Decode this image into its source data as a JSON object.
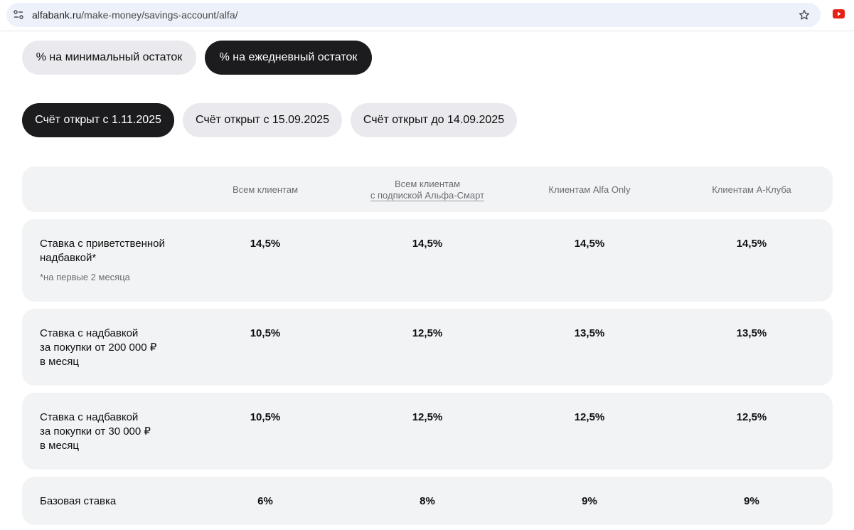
{
  "browser": {
    "url_host": "alfabank.ru",
    "url_path": "/make-money/savings-account/alfa/",
    "site_info_icon": "tune-icon",
    "bookmark_icon": "star-icon",
    "extension_icon": "youtube-icon"
  },
  "rate_type_tabs": [
    {
      "label": "% на минимальный остаток",
      "active": false
    },
    {
      "label": "% на ежедневный остаток",
      "active": true
    }
  ],
  "account_date_tabs": [
    {
      "label": "Счёт открыт с 1.11.2025",
      "active": true
    },
    {
      "label": "Счёт открыт с 15.09.2025",
      "active": false
    },
    {
      "label": "Счёт открыт до 14.09.2025",
      "active": false
    }
  ],
  "table": {
    "headers": [
      {
        "line1": "Всем клиентам",
        "line2": ""
      },
      {
        "line1": "Всем клиентам",
        "line2": "с подпиской Альфа-Смарт"
      },
      {
        "line1": "Клиентам Alfa Only",
        "line2": ""
      },
      {
        "line1": "Клиентам А-Клуба",
        "line2": ""
      }
    ],
    "rows": [
      {
        "label_lines": [
          "Ставка с приветственной",
          "надбавкой*"
        ],
        "note": "*на первые 2 месяца",
        "values": [
          "14,5%",
          "14,5%",
          "14,5%",
          "14,5%"
        ]
      },
      {
        "label_lines": [
          "Ставка с надбавкой",
          "за покупки от 200 000 ₽",
          "в месяц"
        ],
        "note": "",
        "values": [
          "10,5%",
          "12,5%",
          "13,5%",
          "13,5%"
        ]
      },
      {
        "label_lines": [
          "Ставка с надбавкой",
          "за покупки от 30 000 ₽",
          "в месяц"
        ],
        "note": "",
        "values": [
          "10,5%",
          "12,5%",
          "12,5%",
          "12,5%"
        ]
      },
      {
        "label_lines": [
          "Базовая ставка"
        ],
        "note": "",
        "values": [
          "6%",
          "8%",
          "9%",
          "9%"
        ]
      }
    ]
  },
  "colors": {
    "active_pill": "#1c1c1e",
    "inactive_pill": "#eaeaee",
    "row_background": "#f2f3f5",
    "muted_text": "#6b6d72"
  }
}
